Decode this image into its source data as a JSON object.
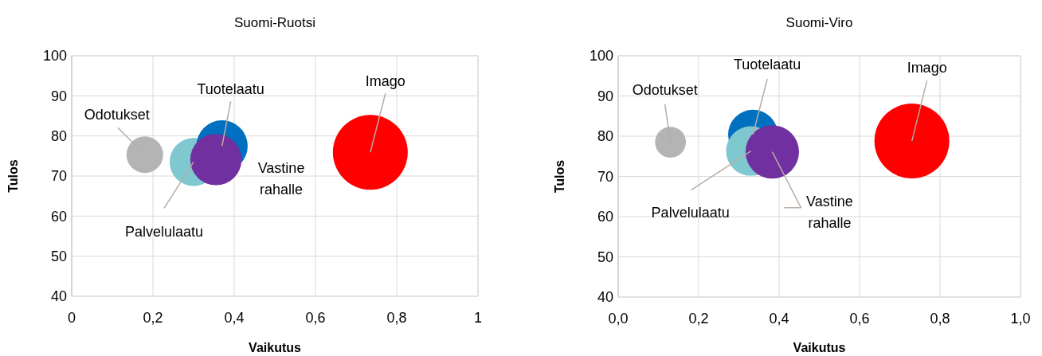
{
  "chart_data": [
    {
      "type": "bubble",
      "title": "Suomi-Ruotsi",
      "xlabel": "Vaikutus",
      "ylabel": "Tulos",
      "xlim": [
        0,
        1
      ],
      "ylim": [
        40,
        100
      ],
      "xticks": [
        0,
        {
          "value": 0.2,
          "label": "0,2"
        },
        {
          "value": 0.4,
          "label": "0,4"
        },
        {
          "value": 0.6,
          "label": "0,6"
        },
        {
          "value": 0.8,
          "label": "0,8"
        },
        1
      ],
      "yticks": [
        40,
        50,
        60,
        70,
        80,
        90,
        100
      ],
      "grid": true,
      "series": [
        {
          "name": "Odotukset",
          "color": "#b4b4b4",
          "x": [
            0.18
          ],
          "values": [
            75.3
          ],
          "sizes": [
            0.24
          ]
        },
        {
          "name": "Palvelulaatu",
          "color": "#7fc8d0",
          "x": [
            0.3
          ],
          "values": [
            73.5
          ],
          "sizes": [
            0.41
          ]
        },
        {
          "name": "Tuotelaatu",
          "color": "#0070c0",
          "x": [
            0.37
          ],
          "values": [
            77.5
          ],
          "sizes": [
            0.47
          ]
        },
        {
          "name": "Vastine rahalle",
          "color": "#7030a0",
          "x": [
            0.355
          ],
          "values": [
            74.1
          ],
          "sizes": [
            0.47
          ]
        },
        {
          "name": "Imago",
          "color": "#ff0000",
          "x": [
            0.735
          ],
          "values": [
            75.9
          ],
          "sizes": [
            1
          ]
        }
      ]
    },
    {
      "type": "bubble",
      "title": "Suomi-Viro",
      "xlabel": "Vaikutus",
      "ylabel": "Tulos",
      "xlim": [
        0,
        1
      ],
      "ylim": [
        40,
        100
      ],
      "xticks": [
        {
          "value": 0,
          "label": "0,0"
        },
        {
          "value": 0.2,
          "label": "0,2"
        },
        {
          "value": 0.4,
          "label": "0,4"
        },
        {
          "value": 0.6,
          "label": "0,6"
        },
        {
          "value": 0.8,
          "label": "0,8"
        },
        {
          "value": 1,
          "label": "1,0"
        }
      ],
      "yticks": [
        40,
        50,
        60,
        70,
        80,
        90,
        100
      ],
      "grid": true,
      "series": [
        {
          "name": "Tuotelaatu",
          "color": "#0070c0",
          "x": [
            0.335
          ],
          "values": [
            80.4
          ],
          "sizes": [
            0.44
          ]
        },
        {
          "name": "Palvelulaatu",
          "color": "#7fc8d0",
          "x": [
            0.33
          ],
          "values": [
            76.3
          ],
          "sizes": [
            0.44
          ]
        },
        {
          "name": "Vastine rahalle",
          "color": "#7030a0",
          "x": [
            0.383
          ],
          "values": [
            76.1
          ],
          "sizes": [
            0.51
          ]
        },
        {
          "name": "Odotukset",
          "color": "#b4b4b4",
          "x": [
            0.13
          ],
          "values": [
            78.5
          ],
          "sizes": [
            0.17
          ]
        },
        {
          "name": "Imago",
          "color": "#ff0000",
          "x": [
            0.73
          ],
          "values": [
            78.8
          ],
          "sizes": [
            1
          ]
        }
      ]
    }
  ]
}
